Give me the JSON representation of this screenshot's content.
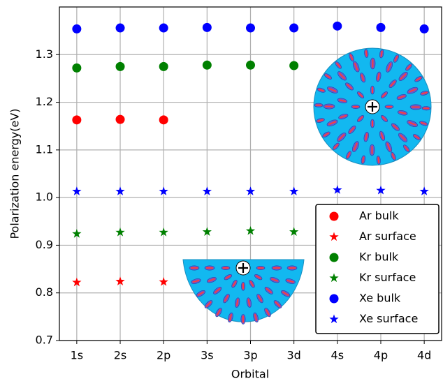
{
  "chart_data": {
    "type": "scatter",
    "xlabel": "Orbital",
    "ylabel": "Polarization energy(eV)",
    "categories": [
      "1s",
      "2s",
      "2p",
      "3s",
      "3p",
      "3d",
      "4s",
      "4p",
      "4d"
    ],
    "series": [
      {
        "name": "Ar bulk",
        "color": "#ff0000",
        "marker": "circle",
        "values": [
          1.163,
          1.164,
          1.163,
          null,
          null,
          null,
          null,
          null,
          null
        ]
      },
      {
        "name": "Ar surface",
        "color": "#ff0000",
        "marker": "star",
        "values": [
          0.822,
          0.824,
          0.823,
          null,
          null,
          null,
          null,
          null,
          null
        ]
      },
      {
        "name": "Kr bulk",
        "color": "#008000",
        "marker": "circle",
        "values": [
          1.272,
          1.275,
          1.275,
          1.278,
          1.278,
          1.277,
          null,
          null,
          null
        ]
      },
      {
        "name": "Kr surface",
        "color": "#008000",
        "marker": "star",
        "values": [
          0.924,
          0.927,
          0.927,
          0.928,
          0.93,
          0.928,
          null,
          null,
          null
        ]
      },
      {
        "name": "Xe bulk",
        "color": "#0000ff",
        "marker": "circle",
        "values": [
          1.354,
          1.356,
          1.356,
          1.357,
          1.356,
          1.356,
          1.36,
          1.357,
          1.354
        ]
      },
      {
        "name": "Xe surface",
        "color": "#0000ff",
        "marker": "star",
        "values": [
          1.013,
          1.013,
          1.013,
          1.013,
          1.013,
          1.013,
          1.016,
          1.015,
          1.013
        ]
      }
    ],
    "ylim": [
      0.7,
      1.4
    ],
    "yticks": [
      0.7,
      0.8,
      0.9,
      {
        "value": 1,
        "label": "1.0"
      },
      1.1,
      1.2,
      1.3
    ],
    "grid": true,
    "legend": "lower right"
  }
}
